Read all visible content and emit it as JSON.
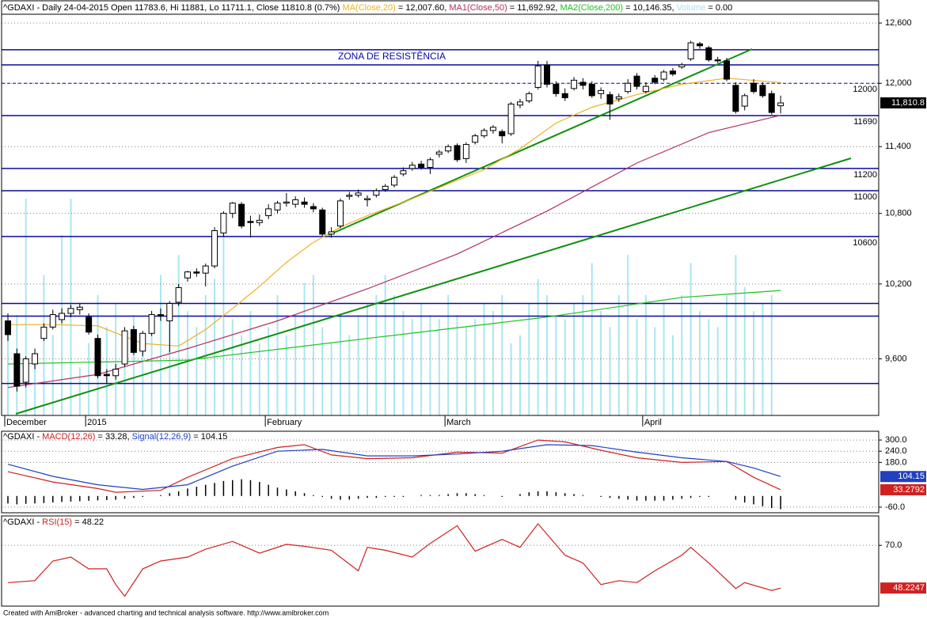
{
  "chart_data": [
    {
      "type": "candlestick",
      "title": "^GDAXI - Daily 24-04-2015 Open 11783.6, Hi 11881, Lo 11711.1, Close 11810.8 (0.7%) ",
      "annotation": "ZONA DE RESISTÊNCIA",
      "last_label": "11,810.8",
      "categories": [
        "December",
        null,
        null,
        null,
        null,
        null,
        null,
        null,
        null,
        "2015",
        null,
        null,
        null,
        null,
        null,
        null,
        null,
        null,
        null,
        null,
        null,
        null,
        null,
        null,
        null,
        null,
        null,
        null,
        null,
        "February",
        null,
        null,
        null,
        null,
        null,
        null,
        null,
        null,
        null,
        null,
        null,
        null,
        null,
        null,
        null,
        null,
        null,
        null,
        null,
        "March",
        null,
        null,
        null,
        null,
        null,
        null,
        null,
        null,
        null,
        null,
        null,
        null,
        null,
        null,
        null,
        null,
        null,
        null,
        null,
        null,
        null,
        "April",
        null,
        null,
        null,
        null,
        null,
        null,
        null,
        null,
        null,
        null,
        null,
        null,
        null,
        null,
        null
      ],
      "ohlc": [
        [
          9900,
          9960,
          9740,
          9790
        ],
        [
          9640,
          9680,
          9350,
          9390
        ],
        [
          9420,
          9620,
          9380,
          9600
        ],
        [
          9560,
          9680,
          9520,
          9640
        ],
        [
          9760,
          9880,
          9740,
          9850
        ],
        [
          9850,
          9990,
          9830,
          9950
        ],
        [
          9910,
          10000,
          9880,
          9960
        ],
        [
          9960,
          10030,
          9930,
          10000
        ],
        [
          9990,
          10040,
          9950,
          10010
        ],
        [
          9930,
          9960,
          9790,
          9810
        ],
        [
          9760,
          9790,
          9450,
          9470
        ],
        [
          9480,
          9520,
          9410,
          9470
        ],
        [
          9470,
          9560,
          9440,
          9520
        ],
        [
          9560,
          9850,
          9540,
          9820
        ],
        [
          9830,
          9860,
          9630,
          9650
        ],
        [
          9660,
          9820,
          9620,
          9800
        ],
        [
          9800,
          9980,
          9780,
          9950
        ],
        [
          9950,
          10000,
          9900,
          9940
        ],
        [
          9900,
          10060,
          9650,
          10040
        ],
        [
          10050,
          10200,
          10020,
          10170
        ],
        [
          10250,
          10310,
          10220,
          10300
        ],
        [
          10300,
          10330,
          10260,
          10290
        ],
        [
          10290,
          10370,
          10180,
          10350
        ],
        [
          10350,
          10680,
          10330,
          10650
        ],
        [
          10630,
          10820,
          10600,
          10800
        ],
        [
          10800,
          10900,
          10760,
          10890
        ],
        [
          10880,
          10900,
          10670,
          10690
        ],
        [
          10730,
          10780,
          10590,
          10720
        ],
        [
          10720,
          10790,
          10690,
          10740
        ],
        [
          10780,
          10880,
          10750,
          10840
        ],
        [
          10830,
          10910,
          10800,
          10890
        ],
        [
          10890,
          10980,
          10860,
          10900
        ],
        [
          10880,
          10950,
          10850,
          10920
        ],
        [
          10900,
          10940,
          10850,
          10880
        ],
        [
          10860,
          10890,
          10810,
          10840
        ],
        [
          10830,
          10850,
          10600,
          10620
        ],
        [
          10620,
          10680,
          10590,
          10640
        ],
        [
          10690,
          10930,
          10670,
          10910
        ],
        [
          10950,
          10990,
          10920,
          10960
        ],
        [
          10960,
          11010,
          10940,
          10980
        ],
        [
          10920,
          10960,
          10860,
          10930
        ],
        [
          10960,
          11020,
          10940,
          11000
        ],
        [
          11010,
          11060,
          10990,
          11040
        ],
        [
          11050,
          11140,
          11030,
          11120
        ],
        [
          11150,
          11210,
          11130,
          11180
        ],
        [
          11200,
          11260,
          11180,
          11230
        ],
        [
          11240,
          11270,
          11190,
          11210
        ],
        [
          11210,
          11300,
          11150,
          11280
        ],
        [
          11330,
          11370,
          11300,
          11350
        ],
        [
          11360,
          11420,
          11340,
          11400
        ],
        [
          11410,
          11430,
          11260,
          11280
        ],
        [
          11290,
          11440,
          11250,
          11420
        ],
        [
          11440,
          11520,
          11420,
          11500
        ],
        [
          11500,
          11570,
          11480,
          11550
        ],
        [
          11550,
          11600,
          11520,
          11580
        ],
        [
          11540,
          11560,
          11430,
          11500
        ],
        [
          11520,
          11820,
          11500,
          11800
        ],
        [
          11790,
          11850,
          11760,
          11820
        ],
        [
          11830,
          11920,
          11810,
          11900
        ],
        [
          11960,
          12220,
          11940,
          12170
        ],
        [
          12180,
          12220,
          11960,
          11990
        ],
        [
          11990,
          12020,
          11870,
          11900
        ],
        [
          11900,
          11950,
          11830,
          11860
        ],
        [
          11950,
          12060,
          11930,
          12030
        ],
        [
          12010,
          12050,
          11940,
          11980
        ],
        [
          11990,
          12020,
          11860,
          11880
        ],
        [
          11900,
          11960,
          11850,
          11930
        ],
        [
          11890,
          11920,
          11650,
          11800
        ],
        [
          11850,
          11900,
          11820,
          11870
        ],
        [
          11920,
          12040,
          11900,
          12000
        ],
        [
          12070,
          12100,
          11940,
          11970
        ],
        [
          11920,
          12010,
          11900,
          11970
        ],
        [
          12050,
          12080,
          11990,
          12010
        ],
        [
          12040,
          12130,
          12020,
          12110
        ],
        [
          12120,
          12150,
          12070,
          12090
        ],
        [
          12160,
          12200,
          12140,
          12180
        ],
        [
          12240,
          12420,
          12220,
          12400
        ],
        [
          12390,
          12410,
          12340,
          12370
        ],
        [
          12350,
          12370,
          12210,
          12230
        ],
        [
          12230,
          12260,
          12200,
          12220
        ],
        [
          12220,
          12250,
          12020,
          12040
        ],
        [
          11980,
          12010,
          11710,
          11730
        ],
        [
          11780,
          11900,
          11740,
          11880
        ],
        [
          12000,
          12040,
          11900,
          11920
        ],
        [
          11980,
          12010,
          11860,
          11880
        ],
        [
          11900,
          11930,
          11700,
          11720
        ],
        [
          11783.6,
          11881,
          11711.1,
          11810.8
        ]
      ],
      "up_color": "#ffffff",
      "down_color": "#000000",
      "log": true,
      "ylim": [
        9170,
        12690
      ],
      "yticks": [
        {
          "value": 9600,
          "label": "9,600"
        },
        {
          "value": 10200,
          "label": "10,200"
        },
        {
          "value": 10800,
          "label": "10,800"
        },
        {
          "value": 11400,
          "label": "11,400"
        },
        {
          "value": 12000,
          "label": "12,000"
        },
        {
          "value": 12600,
          "label": "12,600"
        }
      ],
      "grid_color": "#808080",
      "level_color": "#0a0a9a",
      "levels": [
        12330,
        12180,
        11690,
        11200,
        11000,
        10600,
        10040,
        9938,
        9410
      ],
      "dashed_levels": [
        12000
      ],
      "level_labels": [
        12000,
        11690,
        11200,
        11000,
        10600
      ],
      "series": [
        {
          "name": "MA(Close,20)",
          "header_text": " = 12,007.60, ",
          "color": "#f0b020",
          "x": [
            0,
            5,
            10,
            15,
            19,
            22,
            25,
            28,
            31,
            34,
            37,
            40,
            45,
            49,
            53,
            57,
            61,
            65,
            70,
            75,
            80,
            86
          ],
          "values": [
            9870,
            9870,
            9860,
            9720,
            9700,
            9830,
            10000,
            10180,
            10380,
            10550,
            10680,
            10780,
            10930,
            11060,
            11190,
            11380,
            11620,
            11770,
            11890,
            11990,
            12050,
            12007.6
          ]
        },
        {
          "name": "MA1(Close,50)",
          "header_text": " = 11,692.92, ",
          "color": "#b03060",
          "x": [
            0,
            10,
            20,
            30,
            40,
            50,
            60,
            70,
            78,
            86
          ],
          "values": [
            9380,
            9480,
            9680,
            9900,
            10160,
            10450,
            10820,
            11250,
            11530,
            11692.92
          ]
        },
        {
          "name": "MA2(Close,200)",
          "header_text": " = 10,146.35, ",
          "color": "#20c020",
          "x": [
            0,
            20,
            40,
            60,
            75,
            86
          ],
          "values": [
            9560,
            9590,
            9760,
            9930,
            10090,
            10146.35
          ]
        }
      ],
      "volume": {
        "name": "Volume",
        "header_text": " = 0.00",
        "color": "#a8e6f2",
        "vlim": [
          0,
          100
        ],
        "values": [
          20,
          25,
          54,
          15,
          35,
          20,
          45,
          54,
          12,
          18,
          30,
          22,
          28,
          15,
          25,
          20,
          22,
          35,
          28,
          40,
          26,
          22,
          30,
          34,
          45,
          24,
          20,
          26,
          18,
          22,
          30,
          20,
          25,
          33,
          35,
          22,
          18,
          25,
          20,
          25,
          28,
          30,
          35,
          30,
          26,
          24,
          28,
          25,
          24,
          30,
          25,
          22,
          24,
          28,
          26,
          30,
          18,
          20,
          28,
          34,
          30,
          25,
          24,
          28,
          30,
          38,
          26,
          22,
          30,
          40,
          24,
          30,
          22,
          28,
          20,
          30,
          38,
          26,
          24,
          22,
          30,
          40,
          32,
          26,
          28,
          30,
          0
        ]
      }
    },
    {
      "type": "line",
      "title": "^GDAXI - ",
      "ylim": [
        -90,
        347
      ],
      "yticks": [
        {
          "value": -60,
          "label": "-60.0"
        },
        {
          "value": 180,
          "label": "180.0"
        },
        {
          "value": 240,
          "label": "240.0"
        },
        {
          "value": 300,
          "label": "300.0"
        }
      ],
      "grid_color": "#808080",
      "series": [
        {
          "name": "MACD(12,26)",
          "header_text": " = 33.28, ",
          "color": "#d02020",
          "last_label": "33.2792",
          "x": [
            0,
            5,
            10,
            12,
            17,
            20,
            25,
            30,
            33,
            36,
            40,
            45,
            50,
            55,
            59,
            62,
            66,
            70,
            75,
            80,
            83,
            86
          ],
          "values": [
            130,
            75,
            40,
            20,
            30,
            100,
            200,
            260,
            275,
            220,
            200,
            205,
            235,
            230,
            300,
            290,
            245,
            205,
            180,
            185,
            100,
            33.28
          ]
        },
        {
          "name": "Signal(12,26,9)",
          "header_text": " = 104.15",
          "color": "#2040c0",
          "last_label": "104.15",
          "x": [
            0,
            5,
            10,
            15,
            20,
            25,
            30,
            35,
            40,
            45,
            50,
            55,
            60,
            65,
            70,
            75,
            80,
            83,
            86
          ],
          "values": [
            170,
            105,
            60,
            35,
            60,
            160,
            240,
            250,
            215,
            215,
            225,
            240,
            275,
            270,
            235,
            205,
            185,
            150,
            104.15
          ]
        },
        {
          "style": "bar",
          "color": "#000000",
          "values": [
            -40,
            -45,
            -42,
            -40,
            -38,
            -35,
            -32,
            -30,
            -28,
            -26,
            -24,
            -22,
            -20,
            -15,
            -10,
            -5,
            0,
            5,
            15,
            25,
            40,
            50,
            60,
            70,
            80,
            85,
            90,
            85,
            75,
            60,
            45,
            35,
            25,
            15,
            5,
            -5,
            -15,
            -20,
            -20,
            -15,
            -10,
            -10,
            -5,
            -5,
            -5,
            0,
            5,
            5,
            5,
            10,
            15,
            15,
            10,
            5,
            0,
            -5,
            0,
            10,
            20,
            25,
            25,
            20,
            15,
            10,
            5,
            0,
            -5,
            -10,
            -15,
            -20,
            -25,
            -25,
            -25,
            -25,
            -20,
            -15,
            -10,
            -5,
            -5,
            0,
            0,
            -20,
            -35,
            -45,
            -55,
            -65,
            -70.87
          ]
        }
      ]
    },
    {
      "type": "line",
      "title": "^GDAXI - ",
      "ylim": [
        39,
        85
      ],
      "yticks": [
        {
          "value": 70,
          "label": "70.0"
        }
      ],
      "grid_color": "#808080",
      "series": [
        {
          "name": "RSI(15)",
          "header_text": " = 48.22",
          "color": "#d02020",
          "last_label": "48.2247",
          "x": [
            0,
            3,
            5,
            7,
            9,
            11,
            12,
            13,
            15,
            17,
            20,
            22,
            25,
            28,
            31,
            33,
            36,
            39,
            40,
            42,
            45,
            47,
            50,
            52,
            55,
            57,
            59,
            62,
            64,
            66,
            68,
            70,
            72,
            75,
            76,
            78,
            81,
            82,
            85,
            86
          ],
          "values": [
            51,
            52,
            62,
            64,
            58,
            58,
            50,
            44,
            58,
            62,
            64,
            68,
            72,
            66,
            70.5,
            69.5,
            67.5,
            57,
            69,
            67.5,
            64,
            71,
            80,
            67,
            73,
            69,
            81,
            65,
            61,
            50,
            52,
            51,
            57,
            65,
            69,
            61,
            48,
            51,
            47,
            48.22
          ]
        }
      ]
    }
  ],
  "footer": "Created with AmiBroker - advanced charting and technical analysis software. http://www.amibroker.com"
}
